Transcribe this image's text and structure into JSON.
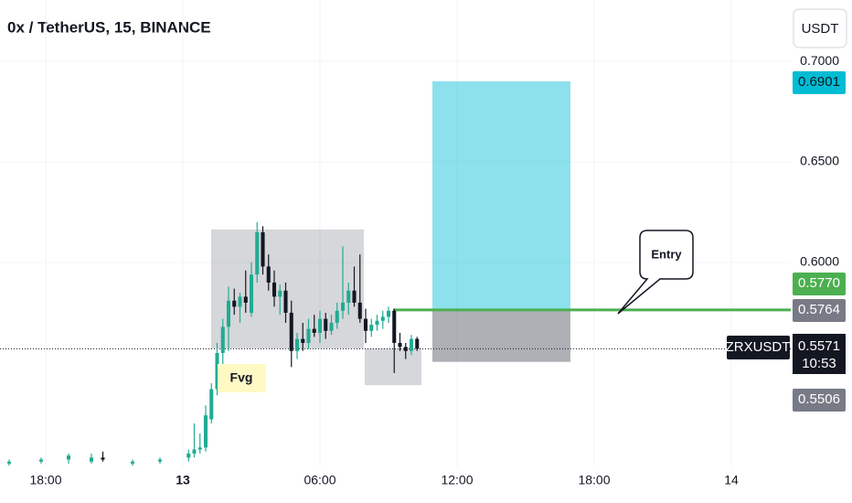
{
  "chart_data": {
    "type": "candlestick",
    "title": "0x / TetherUS, 15, BINANCE",
    "currency": "USDT",
    "symbol": "ZRXUSDT",
    "countdown": "10:53",
    "up_color": "#22ab94",
    "down_color": "#131722",
    "xlim": [
      -8,
      26.6
    ],
    "ylim": [
      0.4986,
      0.7305
    ],
    "xticks": [
      {
        "value": -6,
        "label": "18:00"
      },
      {
        "value": 0,
        "label": "13"
      },
      {
        "value": 6,
        "label": "06:00"
      },
      {
        "value": 12,
        "label": "12:00"
      },
      {
        "value": 18,
        "label": "18:00"
      },
      {
        "value": 24,
        "label": "14"
      }
    ],
    "yticks": [
      {
        "value": 0.7,
        "label": "0.7000"
      },
      {
        "value": 0.65,
        "label": "0.6500"
      },
      {
        "value": 0.6,
        "label": "0.6000"
      }
    ],
    "x": [
      -7.6,
      -6.2,
      -5,
      -4,
      -3.5,
      -2.2,
      -1,
      0.25,
      0.5,
      0.75,
      1,
      1.25,
      1.5,
      1.75,
      2,
      2.25,
      2.5,
      2.75,
      3,
      3.25,
      3.5,
      3.75,
      4,
      4.25,
      4.5,
      4.75,
      5,
      5.25,
      5.5,
      5.75,
      6,
      6.25,
      6.5,
      6.75,
      7,
      7.25,
      7.5,
      7.75,
      8,
      8.25,
      8.5,
      8.75,
      9,
      9.25,
      9.5,
      9.75,
      10,
      10.25
    ],
    "open": [
      0.5,
      0.501,
      0.502,
      0.501,
      0.503,
      0.5,
      0.501,
      0.503,
      0.505,
      0.507,
      0.508,
      0.522,
      0.537,
      0.555,
      0.568,
      0.581,
      0.578,
      0.583,
      0.575,
      0.594,
      0.615,
      0.598,
      0.59,
      0.583,
      0.586,
      0.575,
      0.556,
      0.562,
      0.56,
      0.567,
      0.565,
      0.572,
      0.566,
      0.57,
      0.576,
      0.58,
      0.586,
      0.58,
      0.572,
      0.566,
      0.569,
      0.571,
      0.573,
      0.576,
      0.56,
      0.558,
      0.556,
      0.562
    ],
    "high": [
      0.502,
      0.503,
      0.505,
      0.505,
      0.506,
      0.502,
      0.503,
      0.507,
      0.52,
      0.515,
      0.529,
      0.54,
      0.56,
      0.572,
      0.588,
      0.587,
      0.585,
      0.596,
      0.6,
      0.62,
      0.618,
      0.604,
      0.596,
      0.589,
      0.59,
      0.581,
      0.565,
      0.57,
      0.572,
      0.574,
      0.576,
      0.575,
      0.574,
      0.58,
      0.608,
      0.59,
      0.598,
      0.604,
      0.577,
      0.572,
      0.574,
      0.576,
      0.578,
      0.577,
      0.565,
      0.56,
      0.564,
      0.563
    ],
    "low": [
      0.499,
      0.5,
      0.5,
      0.5,
      0.501,
      0.499,
      0.5,
      0.501,
      0.503,
      0.505,
      0.506,
      0.52,
      0.534,
      0.548,
      0.556,
      0.574,
      0.57,
      0.575,
      0.573,
      0.59,
      0.594,
      0.586,
      0.578,
      0.574,
      0.57,
      0.548,
      0.552,
      0.556,
      0.557,
      0.563,
      0.56,
      0.562,
      0.564,
      0.567,
      0.572,
      0.574,
      0.578,
      0.57,
      0.56,
      0.563,
      0.566,
      0.567,
      0.57,
      0.545,
      0.556,
      0.552,
      0.554,
      0.556
    ],
    "close": [
      0.501,
      0.502,
      0.504,
      0.503,
      0.502,
      0.501,
      0.502,
      0.505,
      0.507,
      0.508,
      0.524,
      0.537,
      0.555,
      0.568,
      0.581,
      0.578,
      0.583,
      0.58,
      0.594,
      0.615,
      0.598,
      0.59,
      0.583,
      0.586,
      0.575,
      0.556,
      0.562,
      0.56,
      0.567,
      0.565,
      0.572,
      0.566,
      0.57,
      0.576,
      0.58,
      0.586,
      0.58,
      0.572,
      0.566,
      0.569,
      0.571,
      0.573,
      0.576,
      0.56,
      0.558,
      0.556,
      0.562,
      0.5571
    ],
    "last_price": {
      "value": 0.5571,
      "label": "0.5571"
    },
    "hline": {
      "value": 0.577,
      "label": "0.5770",
      "color": "#4caf50",
      "start": 9.2
    },
    "position": {
      "start": 10.92,
      "end": 16.96,
      "target": {
        "value": 0.6901,
        "label": "0.6901"
      },
      "entry": {
        "value": 0.5764,
        "label": "0.5764"
      },
      "stop": {
        "value": 0.5506,
        "label": "0.5506"
      }
    },
    "zones": [
      {
        "start": 1.24,
        "end": 7.92,
        "top": 0.6164,
        "bottom": 0.5573
      },
      {
        "start": 7.96,
        "end": 10.44,
        "top": 0.5573,
        "bottom": 0.539
      }
    ],
    "annotations": [
      "Fvg",
      "Entry"
    ]
  }
}
